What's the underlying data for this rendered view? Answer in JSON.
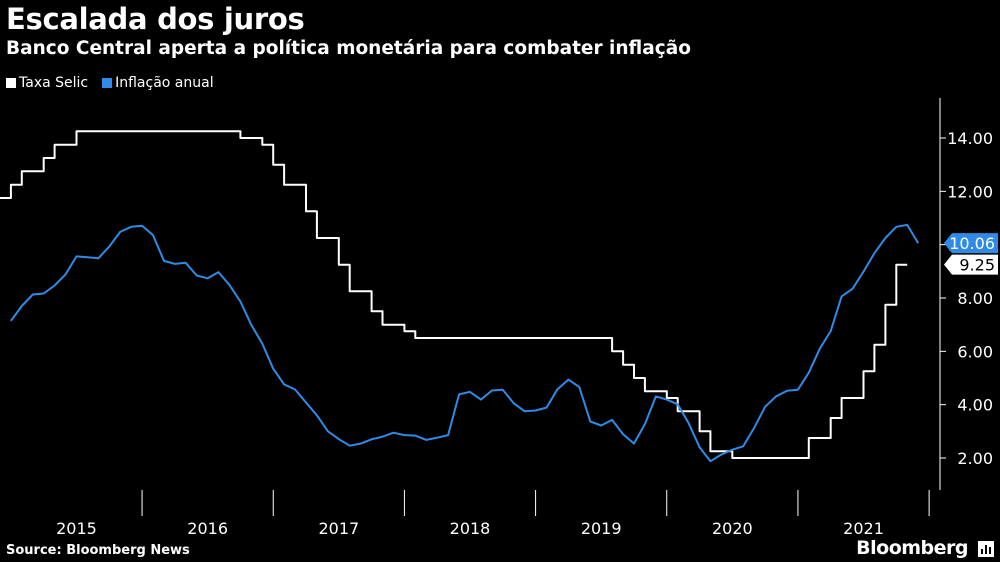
{
  "chart_data": {
    "type": "line",
    "title": "Escalada dos juros",
    "subtitle": "Banco Central aperta a política monetária para combater inflação",
    "source": "Source: Bloomberg News",
    "brand": "Bloomberg",
    "xlabel": "",
    "ylabel": "",
    "x_range": [
      2014.917,
      2022.083
    ],
    "ylim": [
      0.8,
      15.5
    ],
    "y_ticks": [
      "14.00",
      "12.00",
      "10.00",
      "8.00",
      "6.00",
      "4.00",
      "2.00"
    ],
    "x_tick_labels": [
      "2015",
      "2016",
      "2017",
      "2018",
      "2019",
      "2020",
      "2021"
    ],
    "legend_position": "top-left",
    "series": [
      {
        "name": "Taxa Selic",
        "color": "#ffffff",
        "style": "step",
        "last_label": "9.25",
        "points": [
          [
            2014.917,
            11.75
          ],
          [
            2015.0,
            12.25
          ],
          [
            2015.083,
            12.75
          ],
          [
            2015.25,
            13.25
          ],
          [
            2015.333,
            13.75
          ],
          [
            2015.5,
            14.25
          ],
          [
            2016.75,
            14.0
          ],
          [
            2016.917,
            13.75
          ],
          [
            2017.0,
            13.0
          ],
          [
            2017.083,
            12.25
          ],
          [
            2017.25,
            11.25
          ],
          [
            2017.333,
            10.25
          ],
          [
            2017.5,
            9.25
          ],
          [
            2017.583,
            8.25
          ],
          [
            2017.75,
            7.5
          ],
          [
            2017.833,
            7.0
          ],
          [
            2018.0,
            6.75
          ],
          [
            2018.083,
            6.5
          ],
          [
            2019.583,
            6.0
          ],
          [
            2019.667,
            5.5
          ],
          [
            2019.75,
            5.0
          ],
          [
            2019.833,
            4.5
          ],
          [
            2020.0,
            4.25
          ],
          [
            2020.083,
            3.75
          ],
          [
            2020.25,
            3.0
          ],
          [
            2020.333,
            2.25
          ],
          [
            2020.5,
            2.0
          ],
          [
            2021.083,
            2.75
          ],
          [
            2021.25,
            3.5
          ],
          [
            2021.333,
            4.25
          ],
          [
            2021.5,
            5.25
          ],
          [
            2021.583,
            6.25
          ],
          [
            2021.667,
            7.75
          ],
          [
            2021.75,
            9.25
          ],
          [
            2021.833,
            9.25
          ]
        ]
      },
      {
        "name": "Inflação anual",
        "color": "#2f8be6",
        "style": "line",
        "last_label": "10.06",
        "points": [
          [
            2015.0,
            7.14
          ],
          [
            2015.083,
            7.7
          ],
          [
            2015.167,
            8.13
          ],
          [
            2015.25,
            8.17
          ],
          [
            2015.333,
            8.47
          ],
          [
            2015.417,
            8.89
          ],
          [
            2015.5,
            9.56
          ],
          [
            2015.583,
            9.53
          ],
          [
            2015.667,
            9.49
          ],
          [
            2015.75,
            9.93
          ],
          [
            2015.833,
            10.48
          ],
          [
            2015.917,
            10.67
          ],
          [
            2016.0,
            10.71
          ],
          [
            2016.083,
            10.36
          ],
          [
            2016.167,
            9.39
          ],
          [
            2016.25,
            9.28
          ],
          [
            2016.333,
            9.32
          ],
          [
            2016.417,
            8.84
          ],
          [
            2016.5,
            8.74
          ],
          [
            2016.583,
            8.97
          ],
          [
            2016.667,
            8.48
          ],
          [
            2016.75,
            7.87
          ],
          [
            2016.833,
            6.99
          ],
          [
            2016.917,
            6.29
          ],
          [
            2017.0,
            5.35
          ],
          [
            2017.083,
            4.76
          ],
          [
            2017.167,
            4.57
          ],
          [
            2017.25,
            4.08
          ],
          [
            2017.333,
            3.6
          ],
          [
            2017.417,
            3.0
          ],
          [
            2017.5,
            2.71
          ],
          [
            2017.583,
            2.46
          ],
          [
            2017.667,
            2.54
          ],
          [
            2017.75,
            2.7
          ],
          [
            2017.833,
            2.8
          ],
          [
            2017.917,
            2.95
          ],
          [
            2018.0,
            2.86
          ],
          [
            2018.083,
            2.84
          ],
          [
            2018.167,
            2.68
          ],
          [
            2018.25,
            2.76
          ],
          [
            2018.333,
            2.86
          ],
          [
            2018.417,
            4.39
          ],
          [
            2018.5,
            4.48
          ],
          [
            2018.583,
            4.19
          ],
          [
            2018.667,
            4.53
          ],
          [
            2018.75,
            4.56
          ],
          [
            2018.833,
            4.05
          ],
          [
            2018.917,
            3.75
          ],
          [
            2019.0,
            3.78
          ],
          [
            2019.083,
            3.89
          ],
          [
            2019.167,
            4.58
          ],
          [
            2019.25,
            4.94
          ],
          [
            2019.333,
            4.66
          ],
          [
            2019.417,
            3.37
          ],
          [
            2019.5,
            3.22
          ],
          [
            2019.583,
            3.43
          ],
          [
            2019.667,
            2.89
          ],
          [
            2019.75,
            2.54
          ],
          [
            2019.833,
            3.27
          ],
          [
            2019.917,
            4.31
          ],
          [
            2020.0,
            4.19
          ],
          [
            2020.083,
            4.01
          ],
          [
            2020.167,
            3.3
          ],
          [
            2020.25,
            2.4
          ],
          [
            2020.333,
            1.88
          ],
          [
            2020.417,
            2.13
          ],
          [
            2020.5,
            2.31
          ],
          [
            2020.583,
            2.44
          ],
          [
            2020.667,
            3.14
          ],
          [
            2020.75,
            3.92
          ],
          [
            2020.833,
            4.31
          ],
          [
            2020.917,
            4.52
          ],
          [
            2021.0,
            4.56
          ],
          [
            2021.083,
            5.2
          ],
          [
            2021.167,
            6.1
          ],
          [
            2021.25,
            6.76
          ],
          [
            2021.333,
            8.06
          ],
          [
            2021.417,
            8.35
          ],
          [
            2021.5,
            8.99
          ],
          [
            2021.583,
            9.68
          ],
          [
            2021.667,
            10.25
          ],
          [
            2021.75,
            10.67
          ],
          [
            2021.833,
            10.74
          ],
          [
            2021.917,
            10.06
          ]
        ]
      }
    ]
  }
}
